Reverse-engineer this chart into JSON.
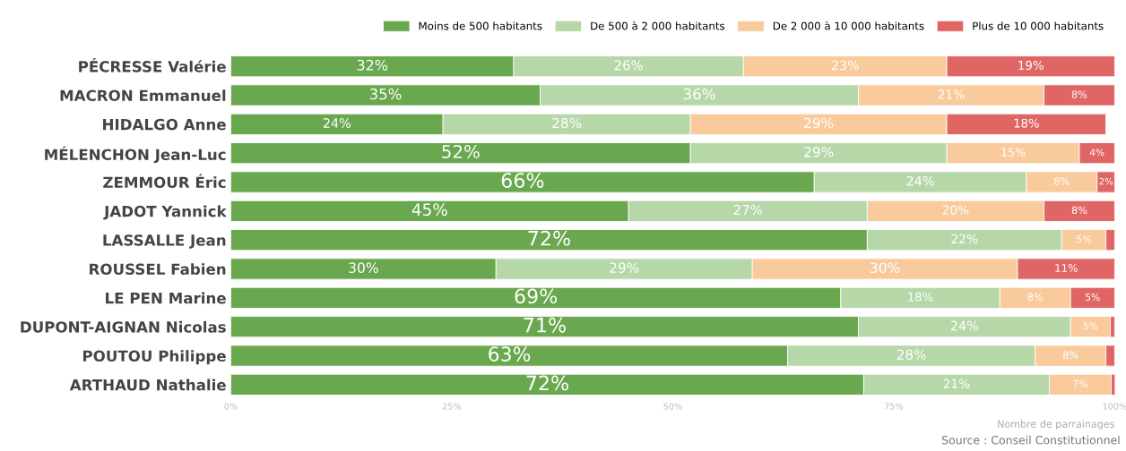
{
  "chart_data": {
    "type": "bar",
    "orientation": "horizontal",
    "stacked": true,
    "legend": "top",
    "xlabel": "Nombre de parrainages",
    "annotations": [
      "Source : Conseil Constitutionnel"
    ],
    "categories": [
      "PÉCRESSE Valérie",
      "MACRON Emmanuel",
      "HIDALGO Anne",
      "MÉLENCHON Jean-Luc",
      "ZEMMOUR Éric",
      "JADOT Yannick",
      "LASSALLE Jean",
      "ROUSSEL Fabien",
      "LE PEN Marine",
      "DUPONT-AIGNAN Nicolas",
      "POUTOU Philippe",
      "ARTHAUD Nathalie"
    ],
    "xlim": [
      0,
      100
    ],
    "xticks": [
      {
        "value": 0,
        "label": "0%"
      },
      {
        "value": 25,
        "label": "25%"
      },
      {
        "value": 50,
        "label": "50%"
      },
      {
        "value": 75,
        "label": "75%"
      },
      {
        "value": 100,
        "label": "100%"
      }
    ],
    "series": [
      {
        "name": "Moins de 500 habitants",
        "color": "#6aa84f",
        "values": [
          32,
          35,
          24,
          52,
          66,
          45,
          72,
          30,
          69,
          71,
          63,
          71.6
        ],
        "value_labels": [
          "32%",
          "35%",
          "24%",
          "52%",
          "66%",
          "45%",
          "72%",
          "30%",
          "69%",
          "71%",
          "63%",
          "72%"
        ]
      },
      {
        "name": "De 500 à 2 000 habitants",
        "color": "#b6d7a8",
        "values": [
          26,
          36,
          28,
          29,
          24,
          27,
          22,
          29,
          18,
          24,
          28,
          21
        ],
        "value_labels": [
          "26%",
          "36%",
          "28%",
          "29%",
          "24%",
          "27%",
          "22%",
          "29%",
          "18%",
          "24%",
          "28%",
          "21%"
        ]
      },
      {
        "name": "De 2 000 à 10 000 habitants",
        "color": "#f9cb9c",
        "values": [
          23,
          21,
          29,
          15,
          8,
          20,
          5,
          30,
          8,
          4.5,
          8,
          7
        ],
        "value_labels": [
          "23%",
          "21%",
          "29%",
          "15%",
          "8%",
          "20%",
          "5%",
          "30%",
          "8%",
          "5%",
          "8%",
          "7%"
        ]
      },
      {
        "name": "Plus de 10 000 habitants",
        "color": "#e06666",
        "values": [
          19,
          8,
          18,
          4,
          2,
          8,
          1,
          11,
          5,
          0.5,
          1,
          0.7
        ],
        "value_labels": [
          "19%",
          "8%",
          "18%",
          "4%",
          "2%",
          "8%",
          null,
          "11%",
          "5%",
          null,
          null,
          null
        ]
      }
    ]
  }
}
